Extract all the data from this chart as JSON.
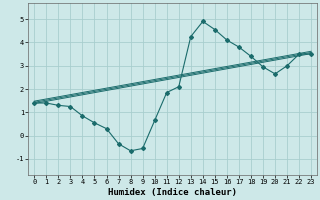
{
  "xlabel": "Humidex (Indice chaleur)",
  "xlim": [
    -0.5,
    23.5
  ],
  "ylim": [
    -1.7,
    5.7
  ],
  "xticks": [
    0,
    1,
    2,
    3,
    4,
    5,
    6,
    7,
    8,
    9,
    10,
    11,
    12,
    13,
    14,
    15,
    16,
    17,
    18,
    19,
    20,
    21,
    22,
    23
  ],
  "yticks": [
    -1,
    0,
    1,
    2,
    3,
    4,
    5
  ],
  "bg_color": "#cde8e8",
  "grid_color": "#a8cece",
  "line_color": "#1a6b6b",
  "data_x": [
    0,
    1,
    2,
    3,
    4,
    5,
    6,
    7,
    8,
    9,
    10,
    11,
    12,
    13,
    14,
    15,
    16,
    17,
    18,
    19,
    20,
    21,
    22,
    23
  ],
  "data_y": [
    1.4,
    1.4,
    1.3,
    1.25,
    0.85,
    0.55,
    0.3,
    -0.35,
    -0.65,
    -0.55,
    0.65,
    1.85,
    2.1,
    4.25,
    4.9,
    4.55,
    4.1,
    3.8,
    3.4,
    2.95,
    2.65,
    3.0,
    3.5,
    3.5
  ],
  "reg_lines": [
    {
      "x0": 0,
      "y0": 1.38,
      "x1": 23,
      "y1": 3.52
    },
    {
      "x0": 0,
      "y0": 1.43,
      "x1": 23,
      "y1": 3.57
    },
    {
      "x0": 0,
      "y0": 1.48,
      "x1": 23,
      "y1": 3.62
    }
  ],
  "xlabel_fontsize": 6.5,
  "tick_fontsize": 5.0
}
